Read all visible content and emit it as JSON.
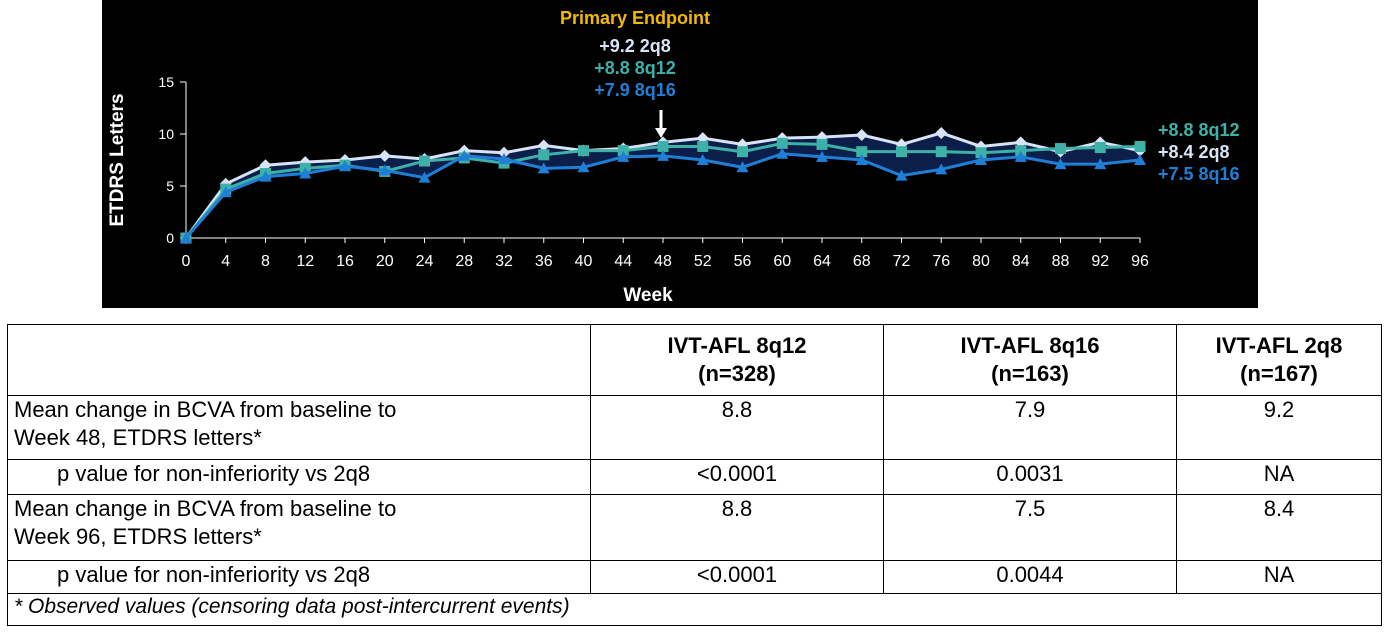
{
  "chart_data": {
    "type": "line",
    "ylabel": "ETDRS Letters",
    "xlabel": "Week",
    "xlim": [
      0,
      96
    ],
    "ylim": [
      0,
      15
    ],
    "x_ticks": [
      0,
      4,
      8,
      12,
      16,
      20,
      24,
      28,
      32,
      36,
      40,
      44,
      48,
      52,
      56,
      60,
      64,
      68,
      72,
      76,
      80,
      84,
      88,
      92,
      96
    ],
    "y_ticks": [
      0,
      5,
      10,
      15
    ],
    "x": [
      0,
      4,
      8,
      12,
      16,
      20,
      24,
      28,
      32,
      36,
      40,
      44,
      48,
      52,
      56,
      60,
      64,
      68,
      72,
      76,
      80,
      84,
      88,
      92,
      96
    ],
    "series": [
      {
        "name": "2q8",
        "color": "#d8e4f6",
        "marker": "diamond",
        "values": [
          0,
          5.2,
          7.0,
          7.3,
          7.5,
          7.9,
          7.6,
          8.4,
          8.2,
          8.9,
          8.4,
          8.6,
          9.2,
          9.6,
          9.0,
          9.6,
          9.7,
          9.9,
          9.0,
          10.1,
          8.8,
          9.2,
          8.3,
          9.2,
          8.4
        ]
      },
      {
        "name": "8q12",
        "color": "#3db0a8",
        "marker": "square",
        "values": [
          0,
          4.7,
          6.2,
          6.7,
          7.0,
          6.4,
          7.4,
          7.7,
          7.2,
          8.0,
          8.4,
          8.4,
          8.8,
          8.8,
          8.3,
          9.1,
          9.0,
          8.3,
          8.3,
          8.3,
          8.2,
          8.4,
          8.6,
          8.7,
          8.8
        ]
      },
      {
        "name": "8q16",
        "color": "#1f7fd6",
        "marker": "triangle",
        "values": [
          0,
          4.4,
          5.9,
          6.2,
          6.9,
          6.5,
          5.8,
          7.9,
          7.6,
          6.7,
          6.8,
          7.8,
          7.9,
          7.5,
          6.8,
          8.1,
          7.8,
          7.5,
          6.0,
          6.6,
          7.5,
          7.8,
          7.1,
          7.1,
          7.5
        ]
      }
    ],
    "annotations": {
      "primary_endpoint_label": "Primary Endpoint",
      "primary_endpoint_color": "#f5b800",
      "week48": [
        {
          "text": "+9.2  2q8",
          "color": "#d8e4f6"
        },
        {
          "text": "+8.8  8q12",
          "color": "#3db0a8"
        },
        {
          "text": "+7.9  8q16",
          "color": "#1f7fd6"
        }
      ],
      "week96": [
        {
          "text": "+8.8  8q12",
          "color": "#3db0a8"
        },
        {
          "text": "+8.4  2q8",
          "color": "#d8e4f6"
        },
        {
          "text": "+7.5  8q16",
          "color": "#1f7fd6"
        }
      ]
    },
    "background": "#000000",
    "grid": false
  },
  "table": {
    "headers": [
      {
        "line1": "IVT-AFL 8q12",
        "line2": "(n=328)"
      },
      {
        "line1": "IVT-AFL 8q16",
        "line2": "(n=163)"
      },
      {
        "line1": "IVT-AFL 2q8",
        "line2": "(n=167)"
      }
    ],
    "rows": [
      {
        "line1": "Mean change in BCVA from baseline to",
        "line2": "Week 48, ETDRS letters*",
        "values": [
          "8.8",
          "7.9",
          "9.2"
        ]
      },
      {
        "label": "p value for non-inferiority vs 2q8",
        "values": [
          "<0.0001",
          "0.0031",
          "NA"
        ]
      },
      {
        "line1": "Mean change in BCVA from baseline to",
        "line2": "Week 96, ETDRS letters*",
        "values": [
          "8.8",
          "7.5",
          "8.4"
        ]
      },
      {
        "label": "p value for non-inferiority vs 2q8",
        "values": [
          "<0.0001",
          "0.0044",
          "NA"
        ]
      }
    ],
    "footnote": "* Observed values (censoring data post-intercurrent events)"
  }
}
